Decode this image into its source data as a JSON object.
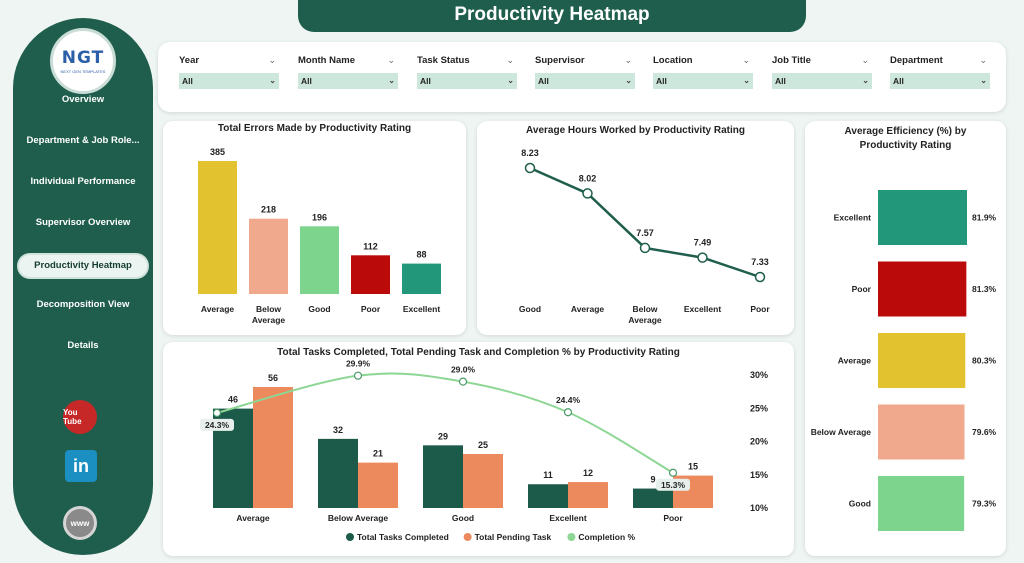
{
  "title": "Productivity Heatmap",
  "logo": {
    "main": "NGT",
    "sub": "NEXT GEN TEMPLATES"
  },
  "nav": [
    {
      "label": "Overview"
    },
    {
      "label": "Department & Job Role..."
    },
    {
      "label": "Individual Performance"
    },
    {
      "label": "Supervisor Overview"
    },
    {
      "label": "Productivity Heatmap",
      "active": true
    },
    {
      "label": "Decomposition View"
    },
    {
      "label": "Details"
    }
  ],
  "social": {
    "youtube": "You Tube",
    "linkedin": "in",
    "web": "www"
  },
  "filters": [
    {
      "label": "Year",
      "value": "All"
    },
    {
      "label": "Month Name",
      "value": "All"
    },
    {
      "label": "Task Status",
      "value": "All"
    },
    {
      "label": "Supervisor",
      "value": "All"
    },
    {
      "label": "Location",
      "value": "All"
    },
    {
      "label": "Job Title",
      "value": "All"
    },
    {
      "label": "Department",
      "value": "All"
    }
  ],
  "colors": {
    "brand": "#1f5e4c",
    "average": "#e2c22f",
    "below_average": "#f0a98c",
    "good": "#7dd48c",
    "poor": "#bb0a0a",
    "excellent": "#22977a",
    "completed": "#1c5b49",
    "pending": "#ec8a5e",
    "completion": "#8dd694"
  },
  "charts": {
    "errors": {
      "title": "Total Errors Made by Productivity Rating",
      "chart_data": {
        "type": "bar",
        "categories": [
          "Average",
          "Below Average",
          "Good",
          "Poor",
          "Excellent"
        ],
        "category_lines": [
          [
            "Average"
          ],
          [
            "Below",
            "Average"
          ],
          [
            "Good"
          ],
          [
            "Poor"
          ],
          [
            "Excellent"
          ]
        ],
        "values": [
          385,
          218,
          196,
          112,
          88
        ],
        "colors": [
          "#e2c22f",
          "#f0a98c",
          "#7dd48c",
          "#bb0a0a",
          "#22977a"
        ],
        "ylim": [
          0,
          385
        ]
      }
    },
    "hours": {
      "title": "Average Hours Worked by Productivity Rating",
      "chart_data": {
        "type": "line",
        "categories": [
          "Good",
          "Average",
          "Below Average",
          "Excellent",
          "Poor"
        ],
        "category_lines": [
          [
            "Good"
          ],
          [
            "Average"
          ],
          [
            "Below",
            "Average"
          ],
          [
            "Excellent"
          ],
          [
            "Poor"
          ]
        ],
        "values": [
          8.23,
          8.02,
          7.57,
          7.49,
          7.33
        ],
        "labels": [
          "8.23",
          "8.02",
          "7.57",
          "7.49",
          "7.33"
        ],
        "ylim": [
          7.33,
          8.23
        ]
      }
    },
    "efficiency": {
      "title": "Average Efficiency (%) by Productivity Rating",
      "title_lines": [
        "Average Efficiency (%) by",
        "Productivity Rating"
      ],
      "chart_data": {
        "type": "bar",
        "orientation": "horizontal",
        "categories": [
          "Excellent",
          "Poor",
          "Average",
          "Below Average",
          "Good"
        ],
        "values": [
          81.9,
          81.3,
          80.3,
          79.6,
          79.3
        ],
        "labels": [
          "81.9%",
          "81.3%",
          "80.3%",
          "79.6%",
          "79.3%"
        ],
        "colors": [
          "#22977a",
          "#bb0a0a",
          "#e2c22f",
          "#f0a98c",
          "#7dd48c"
        ]
      }
    },
    "tasks": {
      "title": "Total Tasks Completed, Total Pending Task and Completion % by Productivity Rating",
      "chart_data": {
        "type": "bar",
        "categories": [
          "Average",
          "Below Average",
          "Good",
          "Excellent",
          "Poor"
        ],
        "series": [
          {
            "name": "Total Tasks Completed",
            "values": [
              46,
              32,
              29,
              11,
              9
            ],
            "color": "#1c5b49"
          },
          {
            "name": "Total Pending Task",
            "values": [
              56,
              21,
              25,
              12,
              15
            ],
            "color": "#ec8a5e"
          },
          {
            "name": "Completion %",
            "type": "line",
            "values": [
              24.3,
              29.9,
              29.0,
              24.4,
              15.3
            ],
            "labels": [
              "24.3%",
              "29.9%",
              "29.0%",
              "24.4%",
              "15.3%"
            ],
            "color": "#8dd694",
            "axis": "right"
          }
        ],
        "ylim": [
          0,
          56
        ],
        "y2lim": [
          10,
          30
        ],
        "y2ticks": [
          "30%",
          "25%",
          "20%",
          "15%",
          "10%"
        ],
        "legend": "bottom"
      }
    }
  }
}
